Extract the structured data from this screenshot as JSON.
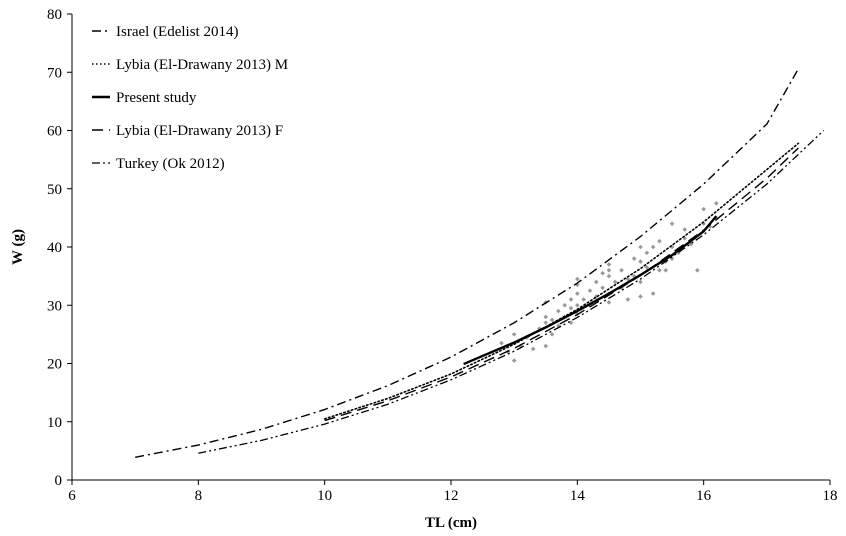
{
  "chart_data": {
    "type": "scatter",
    "xlabel": "TL (cm)",
    "ylabel": "W (g)",
    "xlim": [
      6,
      18
    ],
    "ylim": [
      0,
      80
    ],
    "xticks": [
      6,
      8,
      10,
      12,
      14,
      16,
      18
    ],
    "yticks": [
      0,
      10,
      20,
      30,
      40,
      50,
      60,
      70,
      80
    ],
    "grid": false,
    "legend_position": "top-left",
    "series": [
      {
        "name": "Israel (Edelist 2014)",
        "kind": "line",
        "dash": "dash-dot",
        "color": "#000000",
        "x": [
          7,
          8,
          9,
          10,
          11,
          12,
          13,
          14,
          15,
          16,
          17,
          17.5
        ],
        "y": [
          3.9,
          6.0,
          8.7,
          12.1,
          16.2,
          21.1,
          27.0,
          33.8,
          41.8,
          50.8,
          61.1,
          70.6
        ]
      },
      {
        "name": "Lybia (El-Drawany 2013) M",
        "kind": "line",
        "dash": "dotted",
        "color": "#000000",
        "x": [
          10,
          11,
          12,
          13,
          14,
          15,
          16,
          17,
          17.5
        ],
        "y": [
          10.5,
          14.0,
          18.2,
          23.3,
          29.3,
          36.3,
          44.3,
          53.3,
          57.8
        ]
      },
      {
        "name": "Present study",
        "kind": "line",
        "dash": "solid",
        "color": "#000000",
        "x": [
          12.2,
          12.5,
          13,
          13.5,
          14,
          14.5,
          15,
          15.5,
          16,
          16.2
        ],
        "y": [
          19.9,
          21.3,
          23.6,
          26.2,
          29.0,
          32.0,
          35.2,
          38.6,
          42.7,
          45.3
        ]
      },
      {
        "name": "Lybia (El-Drawany 2013) F",
        "kind": "line",
        "dash": "long-dash",
        "color": "#000000",
        "x": [
          10,
          11,
          12,
          13,
          14,
          15,
          16,
          17,
          17.5
        ],
        "y": [
          10.2,
          13.6,
          17.7,
          22.6,
          28.4,
          35.1,
          42.9,
          51.8,
          57.0
        ]
      },
      {
        "name": "Turkey (Ok 2012)",
        "kind": "line",
        "dash": "dash-dot-dot",
        "color": "#000000",
        "x": [
          8,
          9,
          10,
          11,
          12,
          13,
          14,
          15,
          16,
          17,
          17.9
        ],
        "y": [
          4.6,
          6.8,
          9.6,
          13.0,
          17.2,
          22.1,
          27.9,
          34.5,
          42.1,
          50.8,
          60.0
        ]
      },
      {
        "name": "",
        "kind": "points",
        "color": "#999999",
        "x": [
          12.8,
          12.9,
          13.0,
          13.0,
          13.1,
          13.2,
          13.3,
          13.4,
          13.5,
          13.5,
          13.5,
          13.5,
          13.6,
          13.6,
          13.7,
          13.7,
          13.8,
          13.8,
          13.9,
          13.9,
          13.9,
          14.0,
          14.0,
          14.0,
          14.0,
          14.0,
          14.1,
          14.2,
          14.2,
          14.3,
          14.3,
          14.4,
          14.4,
          14.5,
          14.5,
          14.5,
          14.5,
          14.5,
          14.6,
          14.7,
          14.7,
          14.8,
          14.8,
          14.9,
          14.9,
          15.0,
          15.0,
          15.0,
          15.0,
          15.1,
          15.1,
          15.2,
          15.2,
          15.3,
          15.3,
          15.4,
          15.4,
          15.5,
          15.5,
          15.5,
          15.6,
          15.7,
          15.7,
          15.8,
          15.9,
          16.0,
          16.0,
          16.1,
          16.2,
          16.2
        ],
        "y": [
          23.5,
          22.0,
          25.0,
          20.5,
          23.0,
          24.5,
          22.5,
          26.0,
          23.0,
          27.0,
          28.0,
          30.5,
          25.0,
          27.5,
          26.5,
          29.0,
          28.0,
          30.0,
          27.0,
          29.5,
          31.0,
          30.0,
          32.0,
          33.5,
          34.5,
          28.5,
          31.0,
          30.0,
          32.5,
          31.5,
          34.0,
          33.0,
          35.5,
          30.5,
          32.0,
          35.0,
          36.0,
          37.0,
          34.0,
          33.0,
          36.0,
          31.0,
          34.5,
          35.0,
          38.0,
          31.5,
          34.0,
          37.5,
          40.0,
          36.5,
          39.0,
          32.0,
          40.0,
          36.0,
          41.0,
          37.5,
          36.0,
          38.0,
          40.0,
          44.0,
          39.0,
          41.5,
          43.0,
          40.5,
          36.0,
          44.0,
          46.5,
          43.5,
          47.5,
          45.0
        ]
      }
    ]
  }
}
